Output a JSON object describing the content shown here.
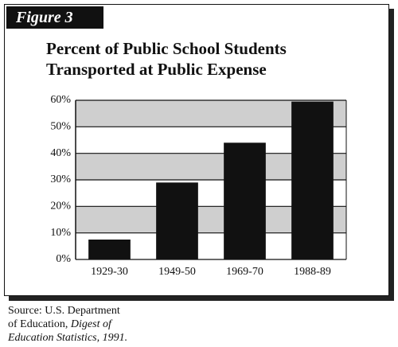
{
  "figure_label": "Figure 3",
  "chart_data": {
    "type": "bar",
    "title": "Percent of Public School Students\nTransported at Public Expense",
    "categories": [
      "1929-30",
      "1949-50",
      "1969-70",
      "1988-89"
    ],
    "values": [
      7.5,
      29,
      44,
      59.5
    ],
    "color": "#111111",
    "band_color": "#cfcfcf",
    "ylim": [
      0,
      60
    ],
    "yticks": [
      {
        "value": 0,
        "label": "0%"
      },
      {
        "value": 10,
        "label": "10%"
      },
      {
        "value": 20,
        "label": "20%"
      },
      {
        "value": 30,
        "label": "30%"
      },
      {
        "value": 40,
        "label": "40%"
      },
      {
        "value": 50,
        "label": "50%"
      },
      {
        "value": 60,
        "label": "60%"
      }
    ]
  },
  "source": {
    "text": "Source: U.S. Department\nof Education, ",
    "italic": "Digest of\nEducation Statistics, 1991."
  }
}
